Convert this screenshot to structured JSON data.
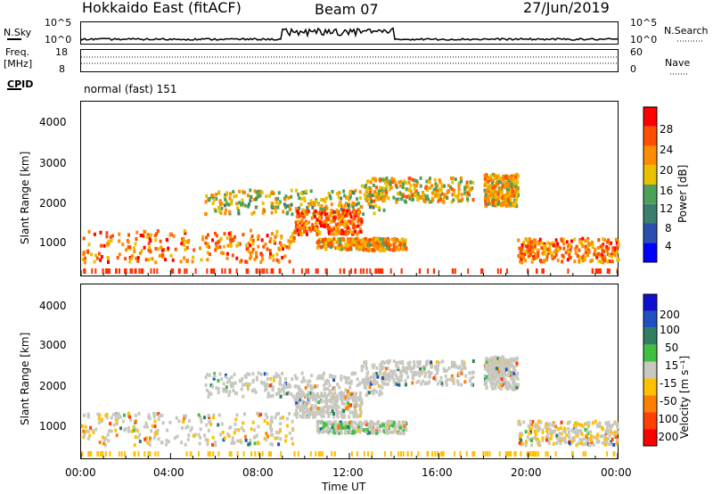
{
  "header": {
    "station": "Hokkaido East (fitACF)",
    "beam": "Beam 07",
    "date": "27/Jun/2019"
  },
  "top_strip": {
    "nsky_label": "N.Sky",
    "nsky_top": "10^5",
    "nsky_bottom": "10^0",
    "nsearch_label": "N.Search",
    "nsearch_top": "10^5",
    "nsearch_bottom": "10^0",
    "freq_label_1": "Freq.",
    "freq_label_2": "[MHz]",
    "freq_top": "18",
    "freq_bottom": "8",
    "nave_label": "Nave",
    "nave_top": "60",
    "nave_bottom": "0",
    "cpid_label": "CPID",
    "cpid_value": "normal (fast) 151"
  },
  "x_axis": {
    "label": "Time UT",
    "ticks": [
      "00:00",
      "04:00",
      "08:00",
      "12:00",
      "16:00",
      "20:00",
      "00:00"
    ]
  },
  "power_panel": {
    "ylabel": "Slant Range [km]",
    "yticks": [
      "4000",
      "3000",
      "2000",
      "1000"
    ],
    "colorbar_label": "Power [dB]",
    "colorbar_ticks": [
      "28",
      "24",
      "20",
      "16",
      "12",
      "8",
      "4"
    ],
    "colors": [
      "#0000ff",
      "#2a4fb0",
      "#3a7f6e",
      "#4ca05a",
      "#e8c000",
      "#ff8c00",
      "#ff5000",
      "#ff0000"
    ]
  },
  "velocity_panel": {
    "ylabel": "Slant Range [km]",
    "yticks": [
      "4000",
      "3000",
      "2000",
      "1000"
    ],
    "colorbar_label": "Velocity [m s⁻¹]",
    "colorbar_ticks": [
      "200",
      "100",
      "50",
      "15",
      "-15",
      "-50",
      "-100",
      "-200"
    ],
    "colors": [
      "#1010d0",
      "#2050c0",
      "#2e8060",
      "#40c040",
      "#c8c8c0",
      "#ffc000",
      "#ff8000",
      "#ff4000",
      "#ff0000"
    ]
  },
  "chart_data": {
    "type": "heatmap",
    "x_unit": "hours UT",
    "xlim": [
      0,
      24
    ],
    "ylim_km": [
      180,
      4500
    ],
    "power_db_range": [
      0,
      30
    ],
    "velocity_range": [
      -250,
      250
    ],
    "echo_regions": [
      {
        "t": [
          0,
          9.5
        ],
        "range_km": [
          500,
          1300
        ],
        "power_db": 28,
        "velocity": -10
      },
      {
        "t": [
          5.5,
          13.5
        ],
        "range_km": [
          1700,
          2300
        ],
        "power_db": 22,
        "velocity": 5
      },
      {
        "t": [
          9.5,
          12.5
        ],
        "range_km": [
          1200,
          1800
        ],
        "power_db": 29,
        "velocity": 0
      },
      {
        "t": [
          10.5,
          14.5
        ],
        "range_km": [
          800,
          1100
        ],
        "power_db": 26,
        "velocity": 10
      },
      {
        "t": [
          12.5,
          17.5
        ],
        "range_km": [
          2000,
          2600
        ],
        "power_db": 24,
        "velocity": -5
      },
      {
        "t": [
          18,
          19.5
        ],
        "range_km": [
          1900,
          2700
        ],
        "power_db": 25,
        "velocity": 0
      },
      {
        "t": [
          19.5,
          24
        ],
        "range_km": [
          500,
          1100
        ],
        "power_db": 28,
        "velocity": -12
      }
    ]
  }
}
